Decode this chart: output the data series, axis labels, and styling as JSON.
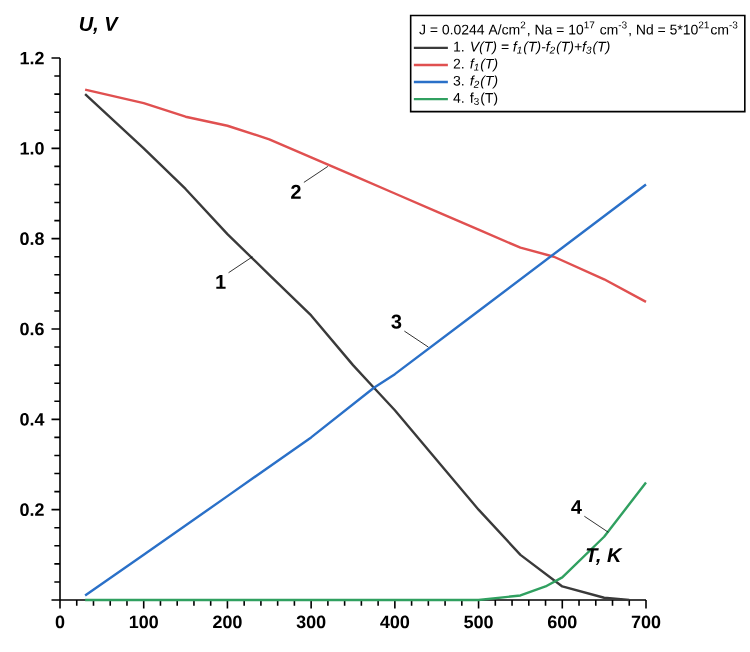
{
  "chart_data": {
    "type": "line",
    "xlabel": "T, K",
    "ylabel": "U, V",
    "legend_title": "J = 0.0244 A/cm$^{2}$, Na = 10$^{17}$ cm$^{-3}$, Nd = 5*10$^{21}$cm$^{-3}$",
    "legend": "top right",
    "xlim": [
      0,
      700
    ],
    "ylim": [
      0,
      1.2
    ],
    "xticks": [
      0,
      100,
      200,
      300,
      400,
      500,
      600,
      700
    ],
    "yticks": [
      {
        "value": 0,
        "label": null
      },
      0.2,
      0.4,
      0.6,
      0.8,
      {
        "value": 1.0,
        "label": "1.0"
      },
      1.2
    ],
    "series": [
      {
        "name": "1. *V(T) = f$_{1}$(T)-f$_{2}$(T)+f$_{3}$(T)*",
        "color": "#3a3a3a",
        "x": [
          30,
          100,
          150,
          200,
          250,
          300,
          350,
          375,
          400,
          450,
          500,
          550,
          600,
          650,
          680
        ],
        "values": [
          1.12,
          1.0,
          0.91,
          0.81,
          0.72,
          0.63,
          0.52,
          0.47,
          0.42,
          0.31,
          0.2,
          0.1,
          0.03,
          0.005,
          0
        ]
      },
      {
        "name": "2. *f$_{1}$(T)*",
        "color": "#e05050",
        "x": [
          30,
          100,
          150,
          200,
          250,
          300,
          350,
          400,
          450,
          500,
          550,
          590,
          650,
          700
        ],
        "values": [
          1.13,
          1.1,
          1.07,
          1.05,
          1.02,
          0.98,
          0.94,
          0.9,
          0.86,
          0.82,
          0.78,
          0.76,
          0.71,
          0.66
        ]
      },
      {
        "name": "3. *f$_{2}$(T)*",
        "color": "#2a70c8",
        "x": [
          30,
          100,
          200,
          300,
          375,
          400,
          500,
          600,
          700
        ],
        "values": [
          0.01,
          0.1,
          0.23,
          0.36,
          0.47,
          0.5,
          0.64,
          0.78,
          0.92
        ]
      },
      {
        "name": "4. f$_{3}$(T)",
        "color": "#30a060",
        "x": [
          30,
          500,
          550,
          580,
          600,
          650,
          700
        ],
        "values": [
          0,
          0,
          0.01,
          0.03,
          0.05,
          0.14,
          0.26
        ]
      }
    ],
    "annotations": [
      {
        "text": "1",
        "x": 230,
        "y": 0.76
      },
      {
        "text": "2",
        "x": 320,
        "y": 0.96
      },
      {
        "text": "3",
        "x": 440,
        "y": 0.56
      },
      {
        "text": "4",
        "x": 655,
        "y": 0.15
      }
    ]
  }
}
